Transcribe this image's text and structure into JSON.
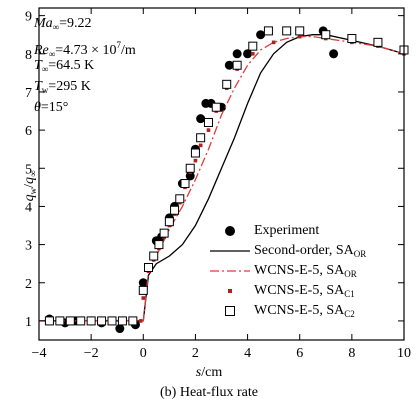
{
  "chart_data": {
    "type": "scatter",
    "xlim": [
      -4,
      10
    ],
    "ylim": [
      0.5,
      9.2
    ],
    "x_ticks": [
      -4,
      -2,
      0,
      2,
      4,
      6,
      8,
      10
    ],
    "y_ticks": [
      1,
      2,
      3,
      4,
      5,
      6,
      7,
      8,
      9
    ],
    "grid": false,
    "legend_position": "center-right",
    "xlabel": "s/cm",
    "ylabel": "q_w/q_∞",
    "caption": "(b) Heat-flux rate",
    "conditions": [
      {
        "sym": "Ma",
        "sub": "∞",
        "rest": "=9.22"
      },
      {
        "sym": "Re",
        "sub": "∞",
        "rest": "=4.73 × 10",
        "sup": "7",
        "tail": "/m"
      },
      {
        "sym": "T",
        "sub": "∞",
        "rest": "=64.5 K"
      },
      {
        "sym": "T",
        "sub": "w",
        "rest": "=295 K"
      },
      {
        "sym": "θ",
        "sub": "",
        "rest": "=15°"
      }
    ],
    "series": [
      {
        "name": "Experiment",
        "main": "Experiment",
        "sub": "",
        "marker": "filled-circle",
        "color": "#000000",
        "x": [
          -3.6,
          -3.0,
          -2.6,
          -2.0,
          -1.6,
          -0.9,
          -0.3,
          0.0,
          0.5,
          0.7,
          1.0,
          1.2,
          1.5,
          1.8,
          2.0,
          2.2,
          2.4,
          2.6,
          3.0,
          3.3,
          3.6,
          4.0,
          4.5,
          6.9,
          7.3
        ],
        "y": [
          1.05,
          0.95,
          1.0,
          1.0,
          0.95,
          0.8,
          0.9,
          2.0,
          3.1,
          3.2,
          3.7,
          4.0,
          4.6,
          4.8,
          5.5,
          6.3,
          6.7,
          6.7,
          6.6,
          7.7,
          8.0,
          8.0,
          8.5,
          8.6,
          8.0
        ]
      },
      {
        "name": "Second-order, SA_OR",
        "main": "Second-order, SA",
        "sub": "OR",
        "line": "solid",
        "color": "#000000",
        "x": [
          -4,
          -1,
          0,
          0.2,
          0.5,
          1,
          1.5,
          2,
          2.5,
          3,
          3.5,
          4,
          4.5,
          5,
          5.5,
          6,
          6.5,
          7,
          8,
          9,
          10
        ],
        "y": [
          1.0,
          1.0,
          1.0,
          2.2,
          2.5,
          2.7,
          3.0,
          3.5,
          4.2,
          5.0,
          5.8,
          6.7,
          7.5,
          8.0,
          8.3,
          8.45,
          8.5,
          8.5,
          8.35,
          8.2,
          8.0
        ]
      },
      {
        "name": "WCNS-E-5, SA_OR",
        "main": "WCNS-E-5, SA",
        "sub": "OR",
        "line": "dashdot",
        "color": "#e03b3b",
        "x": [
          -4,
          -1,
          0,
          0.2,
          0.5,
          1,
          1.5,
          2,
          2.5,
          3,
          3.5,
          4,
          4.5,
          5,
          5.5,
          6,
          6.5,
          7,
          8,
          9,
          10
        ],
        "y": [
          1.0,
          1.0,
          1.0,
          2.3,
          2.7,
          3.4,
          4.0,
          4.7,
          5.5,
          6.4,
          7.1,
          7.7,
          8.1,
          8.3,
          8.4,
          8.45,
          8.45,
          8.4,
          8.3,
          8.2,
          8.0
        ]
      },
      {
        "name": "WCNS-E-5, SA_C1",
        "main": "WCNS-E-5, SA",
        "sub": "C1",
        "marker": "small-square",
        "color": "#b11f1f",
        "x": [
          -3.6,
          -3.2,
          -2.8,
          -2.4,
          -2.0,
          -1.6,
          -1.2,
          -0.8,
          -0.4,
          -0.1,
          0.0,
          0.2,
          0.4,
          0.6,
          0.8,
          1.0,
          1.2,
          1.4,
          1.6,
          1.8,
          2.0,
          2.2,
          2.5,
          2.8,
          3.2,
          3.6,
          4.2,
          5.0,
          6.0,
          7.0,
          8.0,
          9.0,
          10.0
        ],
        "y": [
          1.0,
          1.0,
          1.0,
          1.0,
          1.0,
          1.0,
          1.0,
          1.0,
          1.0,
          1.0,
          1.6,
          2.3,
          2.6,
          2.9,
          3.2,
          3.5,
          3.8,
          4.1,
          4.5,
          4.9,
          5.2,
          5.6,
          6.0,
          6.5,
          7.1,
          7.6,
          8.0,
          8.3,
          8.45,
          8.4,
          8.3,
          8.2,
          8.0
        ]
      },
      {
        "name": "WCNS-E-5, SA_C2",
        "main": "WCNS-E-5, SA",
        "sub": "C2",
        "marker": "open-square",
        "color": "#000000",
        "x": [
          -3.6,
          -3.2,
          -2.8,
          -2.4,
          -2.0,
          -1.6,
          -1.2,
          -0.8,
          -0.4,
          0.0,
          0.2,
          0.4,
          0.6,
          0.8,
          1.0,
          1.2,
          1.4,
          1.6,
          1.8,
          2.0,
          2.2,
          2.5,
          2.8,
          3.2,
          3.6,
          4.2,
          4.8,
          5.5,
          6.0,
          7.0,
          8.0,
          9.0,
          10.0
        ],
        "y": [
          1.0,
          1.0,
          1.0,
          1.0,
          1.0,
          1.0,
          1.0,
          1.0,
          1.0,
          1.8,
          2.4,
          2.7,
          3.0,
          3.3,
          3.6,
          3.9,
          4.2,
          4.6,
          5.0,
          5.4,
          5.8,
          6.2,
          6.6,
          7.2,
          7.7,
          8.2,
          8.6,
          8.6,
          8.6,
          8.5,
          8.4,
          8.3,
          8.1
        ]
      }
    ]
  }
}
